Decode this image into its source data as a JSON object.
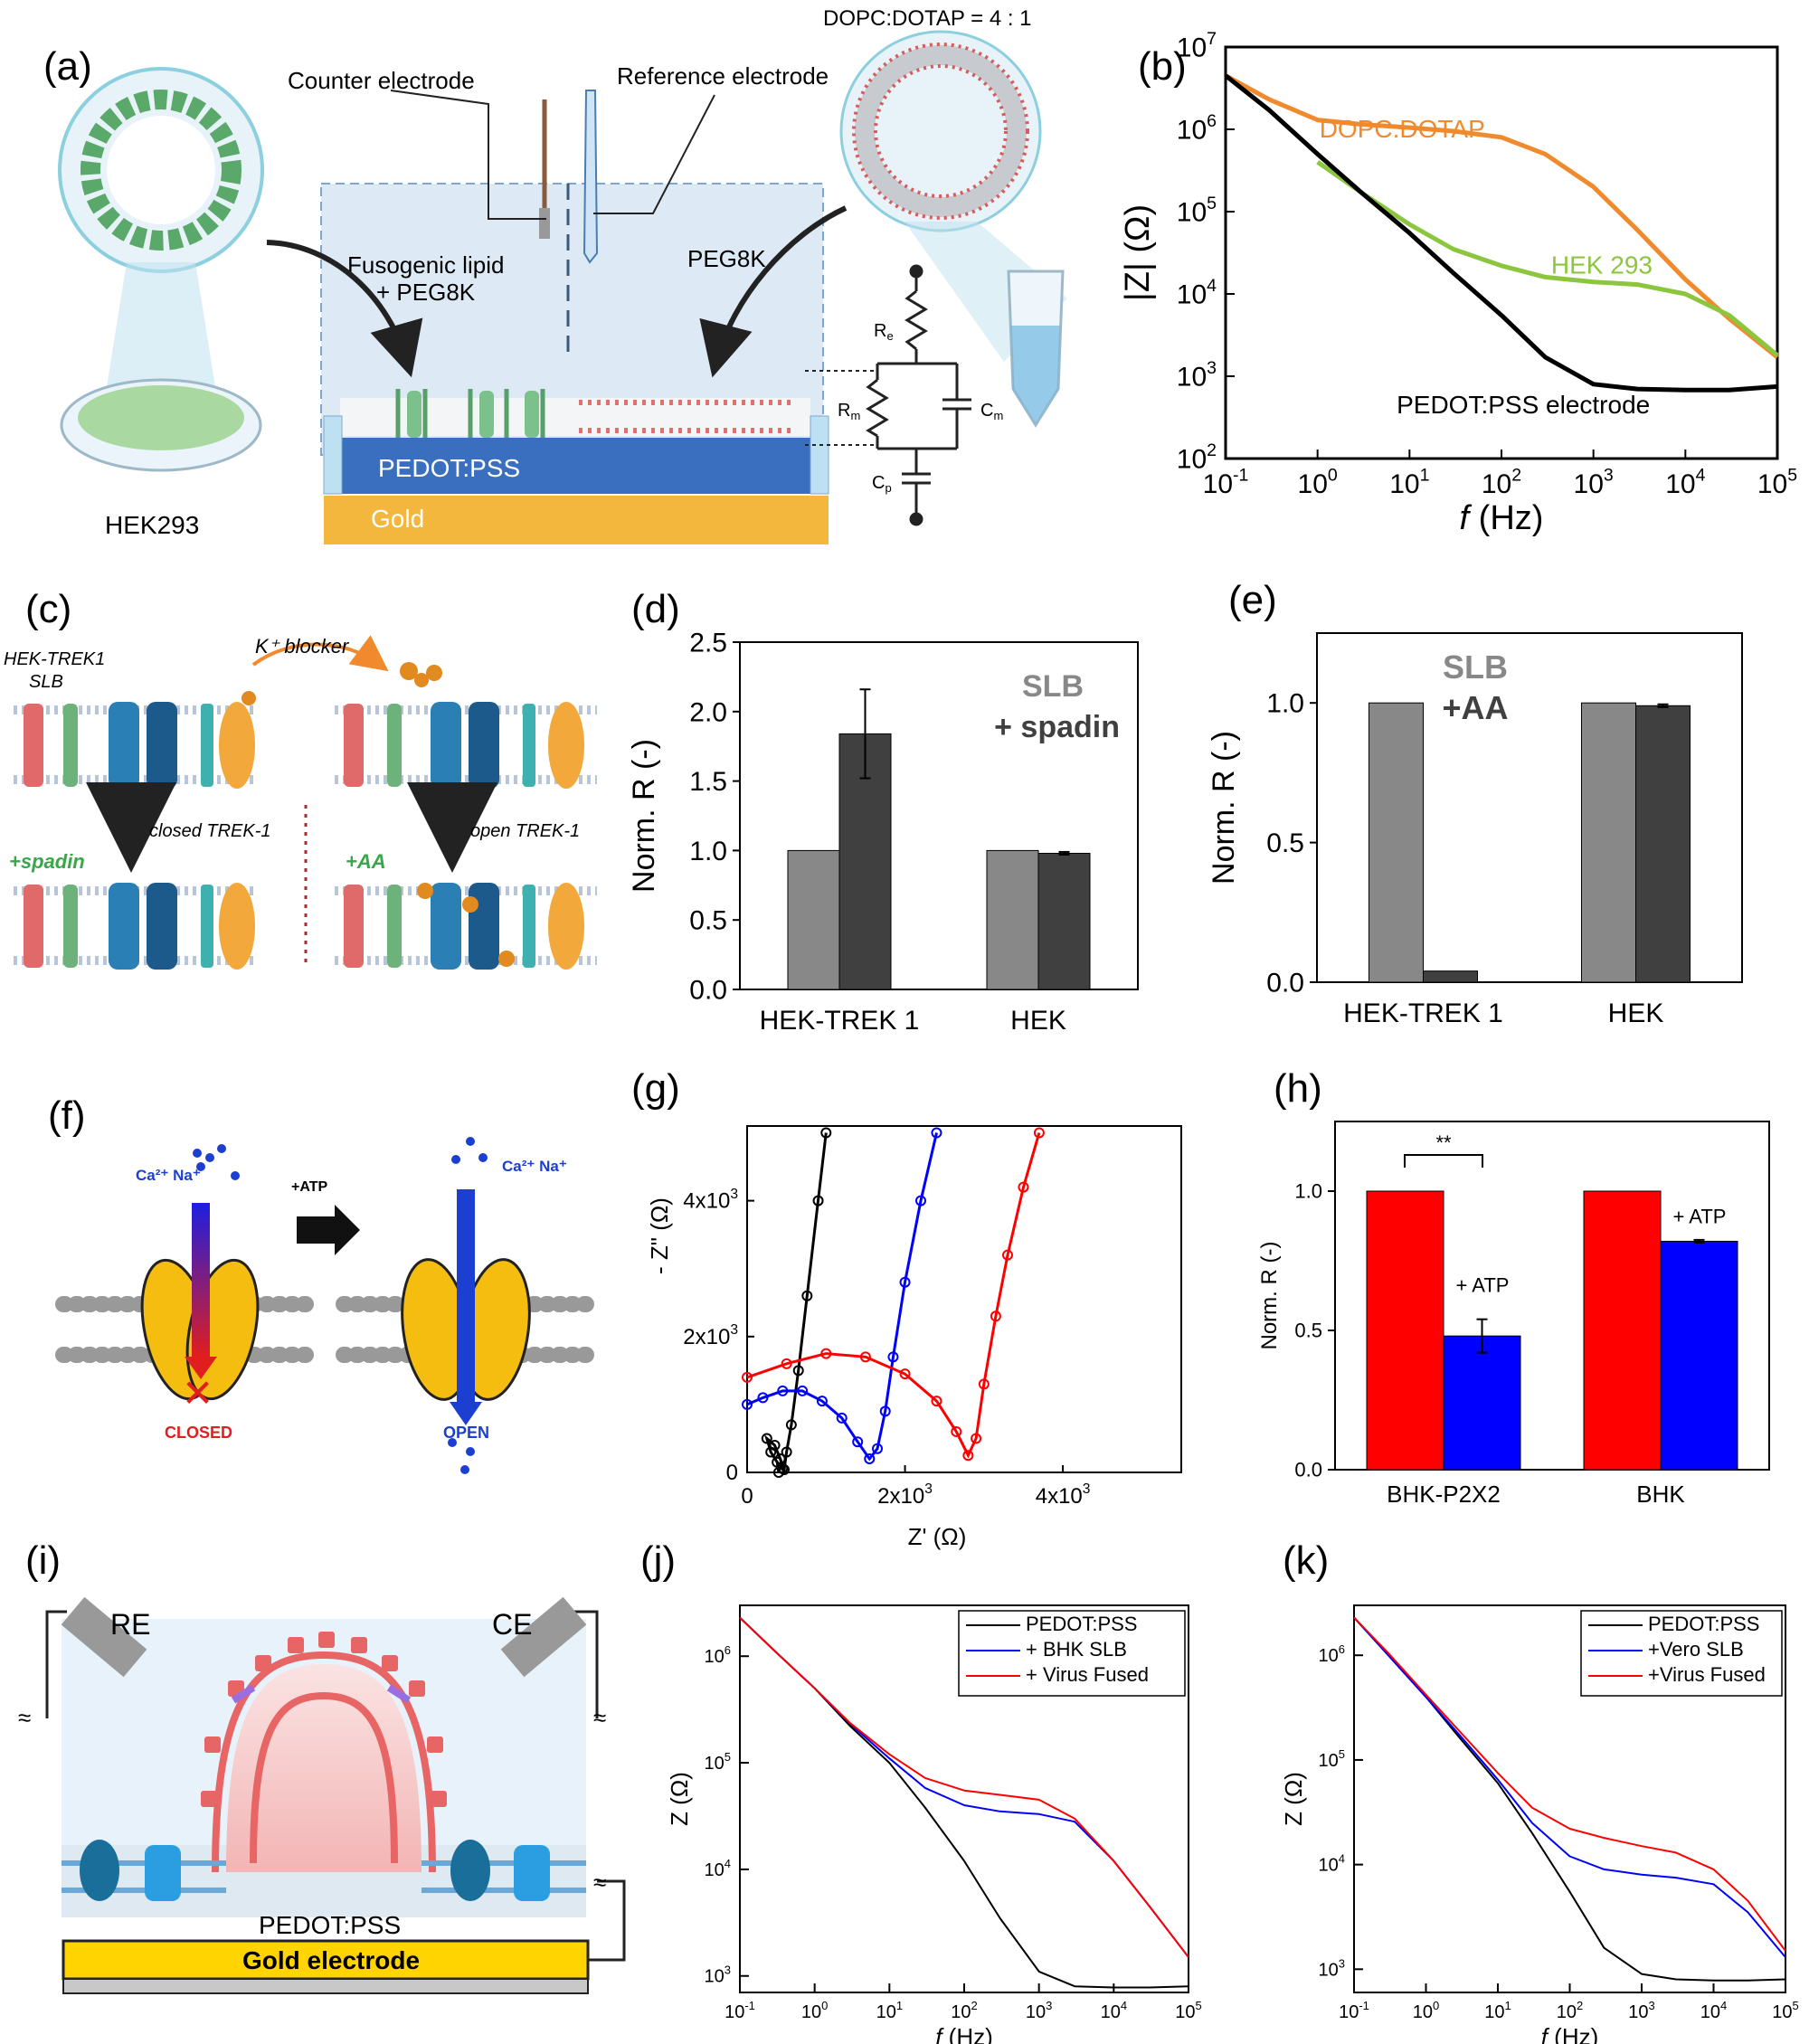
{
  "panel_labels": [
    "(a)",
    "(b)",
    "(c)",
    "(d)",
    "(e)",
    "(f)",
    "(g)",
    "(h)",
    "(i)",
    "(j)",
    "(k)"
  ],
  "a": {
    "top_label": "DOPC:DOTAP = 4 : 1",
    "counter": "Counter electrode",
    "reference": "Reference electrode",
    "fusogenic_1": "Fusogenic lipid",
    "fusogenic_2": "+ PEG8K",
    "peg": "PEG8K",
    "pedot": "PEDOT:PSS",
    "gold": "Gold",
    "hek": "HEK293",
    "re": "R",
    "re_sub": "e",
    "rm": "R",
    "rm_sub": "m",
    "cm": "C",
    "cm_sub": "m",
    "cp": "C",
    "cp_sub": "p"
  },
  "c": {
    "slb_1": "HEK-TREK1",
    "slb_2": "SLB",
    "blocker": "K⁺ blocker",
    "closed": "closed TREK-1",
    "open": "open TREK-1",
    "spadin": "+spadin",
    "aa": "+AA"
  },
  "f": {
    "ions_left": "Ca²⁺ Na⁺",
    "ions_right": "Ca²⁺ Na⁺",
    "atp": "+ATP",
    "closed": "CLOSED",
    "open": "OPEN"
  },
  "i": {
    "re": "RE",
    "ce": "CE",
    "pedot": "PEDOT:PSS",
    "gold": "Gold electrode"
  },
  "colors": {
    "orange": "#f08a2c",
    "green": "#8cc63f",
    "gray_light": "#888888",
    "gray_dark": "#404040",
    "red": "#ff0000",
    "blue": "#0000ff",
    "pedot_blue": "#3a6fc0",
    "gold": "#f4b73e"
  },
  "chart_data": [
    {
      "id": "b",
      "type": "line",
      "xlabel_italic": "f",
      "xlabel": "(Hz)",
      "ylabel": "|Z| (Ω)",
      "xscale": "log",
      "yscale": "log",
      "xlim": [
        0.1,
        100000
      ],
      "ylim": [
        100,
        10000000
      ],
      "xticks": [
        "10-1",
        "100",
        "101",
        "102",
        "103",
        "104",
        "105"
      ],
      "yticks": [
        "102",
        "103",
        "104",
        "105",
        "106",
        "107"
      ],
      "series": [
        {
          "name": "DOPC:DOTAP",
          "color": "#f08a2c",
          "x": [
            0.1,
            0.3,
            1,
            3,
            10,
            30,
            100,
            300,
            1000,
            3000,
            10000,
            30000,
            100000
          ],
          "y": [
            4500000,
            2300000,
            1300000,
            1150000,
            1050000,
            950000,
            800000,
            500000,
            200000,
            60000,
            15000,
            5000,
            1700
          ]
        },
        {
          "name": "HEK 293",
          "color": "#8cc63f",
          "x": [
            1,
            3,
            10,
            30,
            100,
            300,
            1000,
            3000,
            10000,
            30000,
            100000
          ],
          "y": [
            400000,
            170000,
            70000,
            35000,
            22000,
            16000,
            14000,
            13000,
            10000,
            5500,
            1800
          ]
        },
        {
          "name": "PEDOT:PSS electrode",
          "color": "#000000",
          "x": [
            0.1,
            0.3,
            1,
            3,
            10,
            30,
            100,
            300,
            1000,
            3000,
            10000,
            30000,
            100000
          ],
          "y": [
            4500000,
            1700000,
            500000,
            170000,
            55000,
            18000,
            5500,
            1700,
            800,
            700,
            680,
            680,
            750
          ]
        }
      ]
    },
    {
      "id": "d",
      "type": "bar",
      "ylabel": "Norm. R (-)",
      "ylim": [
        0,
        2.5
      ],
      "yticks": [
        "0.0",
        "0.5",
        "1.0",
        "1.5",
        "2.0",
        "2.5"
      ],
      "categories": [
        "HEK-TREK 1",
        "HEK"
      ],
      "legend_1": "SLB",
      "legend_2": "+ spadin",
      "series": [
        {
          "color": "#888888",
          "values": [
            1.0,
            1.0
          ]
        },
        {
          "color": "#404040",
          "values": [
            1.84,
            0.98
          ],
          "errors": [
            0.32,
            0.01
          ]
        }
      ]
    },
    {
      "id": "e",
      "type": "bar",
      "ylabel": "Norm. R (-)",
      "ylim": [
        0,
        1.25
      ],
      "yticks": [
        "0.0",
        "0.5",
        "1.0"
      ],
      "categories": [
        "HEK-TREK 1",
        "HEK"
      ],
      "legend_1": "SLB",
      "legend_2": "+AA",
      "series": [
        {
          "color": "#888888",
          "values": [
            1.0,
            1.0
          ]
        },
        {
          "color": "#404040",
          "values": [
            0.04,
            0.99
          ],
          "errors": [
            0,
            0.005
          ]
        }
      ]
    },
    {
      "id": "g",
      "type": "scatter",
      "xlabel": "Z' (Ω)",
      "ylabel": "- Z\" (Ω)",
      "xlim": [
        0,
        5500
      ],
      "ylim": [
        0,
        5100
      ],
      "xticks": [
        "0",
        "2x103",
        "4x103"
      ],
      "yticks": [
        "0",
        "2x103",
        "4x103"
      ],
      "series": [
        {
          "color": "#000000",
          "x": [
            400,
            380,
            300,
            250,
            350,
            420,
            450,
            470,
            500,
            560,
            650,
            760,
            900,
            1000
          ],
          "y": [
            0,
            150,
            300,
            500,
            400,
            200,
            60,
            40,
            300,
            700,
            1500,
            2600,
            4000,
            5000
          ]
        },
        {
          "color": "#0000ff",
          "x": [
            0,
            200,
            450,
            700,
            950,
            1200,
            1400,
            1550,
            1650,
            1750,
            1850,
            2000,
            2200,
            2400
          ],
          "y": [
            1000,
            1100,
            1200,
            1200,
            1050,
            800,
            450,
            200,
            350,
            900,
            1700,
            2800,
            4000,
            5000
          ]
        },
        {
          "color": "#ff0000",
          "x": [
            0,
            500,
            1000,
            1500,
            2000,
            2400,
            2650,
            2800,
            2900,
            3000,
            3150,
            3300,
            3500,
            3700
          ],
          "y": [
            1400,
            1600,
            1750,
            1700,
            1450,
            1050,
            600,
            250,
            500,
            1300,
            2300,
            3200,
            4200,
            5000
          ]
        }
      ]
    },
    {
      "id": "h",
      "type": "bar",
      "ylabel": "Norm. R (-)",
      "ylim": [
        0,
        1.25
      ],
      "yticks": [
        "0.0",
        "0.5",
        "1.0"
      ],
      "categories": [
        "BHK-P2X2",
        "BHK"
      ],
      "labels": [
        "+ ATP",
        "+ ATP"
      ],
      "significance": "**",
      "series": [
        {
          "color": "#ff0000",
          "values": [
            1.0,
            1.0
          ]
        },
        {
          "color": "#0000ff",
          "values": [
            0.48,
            0.82
          ],
          "errors": [
            0.06,
            0.005
          ]
        }
      ]
    },
    {
      "id": "j",
      "type": "line",
      "xlabel_italic": "f",
      "xlabel": "(Hz)",
      "ylabel": "Z (Ω)",
      "xscale": "log",
      "yscale": "log",
      "xlim": [
        0.1,
        100000
      ],
      "ylim": [
        700,
        3000000
      ],
      "xticks": [
        "10-1",
        "100",
        "101",
        "102",
        "103",
        "104",
        "105"
      ],
      "yticks": [
        "103",
        "104",
        "105",
        "106"
      ],
      "series": [
        {
          "name": "PEDOT:PSS",
          "color": "#000000",
          "x": [
            0.1,
            0.3,
            1,
            3,
            10,
            30,
            100,
            300,
            1000,
            3000,
            10000,
            30000,
            100000
          ],
          "y": [
            2300000,
            1100000,
            500000,
            220000,
            100000,
            38000,
            12000,
            3500,
            1100,
            800,
            780,
            780,
            800
          ]
        },
        {
          "name": "+ BHK SLB",
          "color": "#0000ff",
          "x": [
            0.1,
            0.3,
            1,
            3,
            10,
            30,
            100,
            300,
            1000,
            3000,
            10000,
            30000,
            100000
          ],
          "y": [
            2300000,
            1100000,
            500000,
            230000,
            110000,
            58000,
            40000,
            35000,
            33000,
            28000,
            12000,
            4500,
            1500
          ]
        },
        {
          "name": "+ Virus Fused",
          "color": "#ff0000",
          "x": [
            0.1,
            0.3,
            1,
            3,
            10,
            30,
            100,
            300,
            1000,
            3000,
            10000,
            30000,
            100000
          ],
          "y": [
            2300000,
            1100000,
            500000,
            235000,
            120000,
            72000,
            55000,
            50000,
            45000,
            30000,
            12000,
            4500,
            1500
          ]
        }
      ]
    },
    {
      "id": "k",
      "type": "line",
      "xlabel_italic": "f",
      "xlabel": "(Hz)",
      "ylabel": "Z (Ω)",
      "xscale": "log",
      "yscale": "log",
      "xlim": [
        0.1,
        100000
      ],
      "ylim": [
        600,
        3000000
      ],
      "xticks": [
        "10-1",
        "100",
        "101",
        "102",
        "103",
        "104",
        "105"
      ],
      "yticks": [
        "103",
        "104",
        "105",
        "106"
      ],
      "series": [
        {
          "name": "PEDOT:PSS",
          "color": "#000000",
          "x": [
            0.1,
            0.3,
            1,
            3,
            10,
            30,
            100,
            300,
            1000,
            3000,
            10000,
            30000,
            100000
          ],
          "y": [
            2300000,
            1000000,
            400000,
            160000,
            60000,
            20000,
            5500,
            1600,
            900,
            800,
            780,
            780,
            800
          ]
        },
        {
          "name": "+Vero SLB",
          "color": "#0000ff",
          "x": [
            0.1,
            0.3,
            1,
            3,
            10,
            30,
            100,
            300,
            1000,
            3000,
            10000,
            30000,
            100000
          ],
          "y": [
            2300000,
            1000000,
            400000,
            170000,
            65000,
            25000,
            12000,
            9000,
            8000,
            7500,
            6500,
            3500,
            1300
          ]
        },
        {
          "name": "+Virus Fused",
          "color": "#ff0000",
          "x": [
            0.1,
            0.3,
            1,
            3,
            10,
            30,
            100,
            300,
            1000,
            3000,
            10000,
            30000,
            100000
          ],
          "y": [
            2300000,
            1050000,
            420000,
            185000,
            75000,
            35000,
            22000,
            18000,
            15000,
            13000,
            9000,
            4500,
            1500
          ]
        }
      ]
    }
  ]
}
